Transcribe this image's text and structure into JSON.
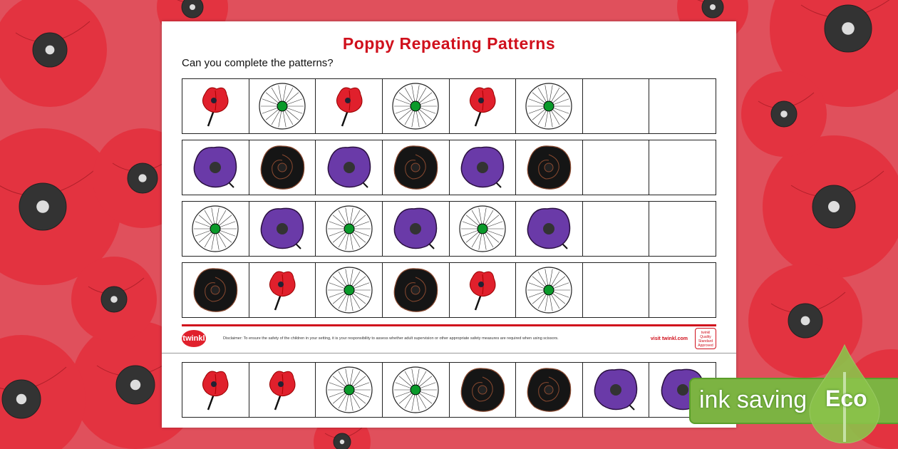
{
  "worksheet": {
    "title": "Poppy Repeating Patterns",
    "instruction": "Can you complete the patterns?",
    "rows": [
      [
        "red",
        "white",
        "red",
        "white",
        "red",
        "white",
        "",
        ""
      ],
      [
        "purple",
        "black",
        "purple",
        "black",
        "purple",
        "black",
        "",
        ""
      ],
      [
        "white",
        "purple",
        "white",
        "purple",
        "white",
        "purple",
        "",
        ""
      ],
      [
        "black",
        "red",
        "white",
        "black",
        "red",
        "white",
        "",
        ""
      ]
    ],
    "cutouts": [
      "red",
      "red",
      "white",
      "white",
      "black",
      "black",
      "purple",
      "purple"
    ],
    "footer": {
      "logo": "twinkl",
      "disclaimer": "Disclaimer: To ensure the safety of the children in your setting, it is your responsibility to assess whether adult supervision or other appropriate safety measures are required when using scissors.",
      "visit": "visit twinkl.com",
      "badge": "twinkl Quality Standard Approved"
    }
  },
  "eco_badge": {
    "text": "ink saving",
    "label": "Eco"
  },
  "colors": {
    "title": "#d0101c",
    "background": "#e0505c",
    "poppy_red": "#e0202c",
    "poppy_purple": "#6a3aa8",
    "eco_green": "#7cb342"
  }
}
